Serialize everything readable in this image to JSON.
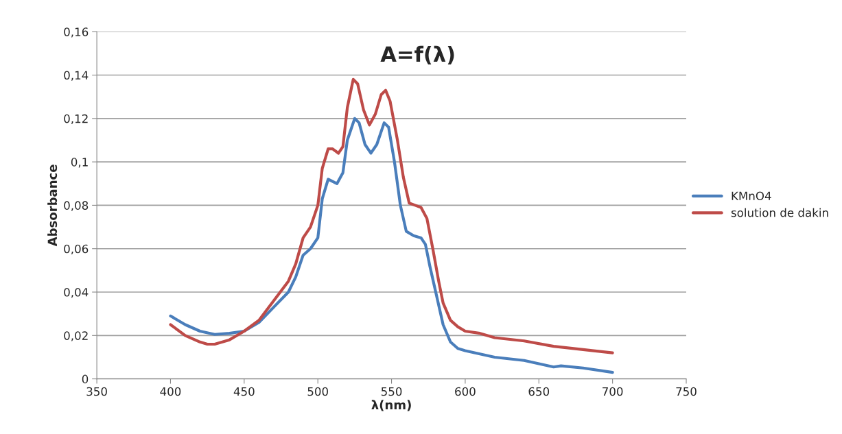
{
  "chart_data": {
    "type": "line",
    "title": "A=f(λ)",
    "xlabel": "λ(nm)",
    "ylabel": "Absorbance",
    "xlim": [
      350,
      750
    ],
    "xticks": [
      350,
      400,
      450,
      500,
      550,
      600,
      650,
      700,
      750
    ],
    "ylim": [
      0,
      0.16
    ],
    "yticks": [
      {
        "value": 0,
        "label": "0"
      },
      {
        "value": 0.02,
        "label": "0,02"
      },
      {
        "value": 0.04,
        "label": "0,04"
      },
      {
        "value": 0.06,
        "label": "0,06"
      },
      {
        "value": 0.08,
        "label": "0,08"
      },
      {
        "value": 0.1,
        "label": "0,1"
      },
      {
        "value": 0.12,
        "label": "0,12"
      },
      {
        "value": 0.14,
        "label": "0,14"
      },
      {
        "value": 0.16,
        "label": "0,16"
      }
    ],
    "grid": "y",
    "legend": "right",
    "marker": "none",
    "line_style": "solid",
    "series": [
      {
        "name": "KMnO4",
        "color": "#4a7ebb",
        "x": [
          400,
          410,
          420,
          430,
          440,
          450,
          460,
          470,
          480,
          485,
          490,
          495,
          500,
          503,
          507,
          510,
          513,
          517,
          520,
          525,
          528,
          532,
          536,
          540,
          545,
          548,
          552,
          556,
          560,
          565,
          570,
          573,
          576,
          580,
          585,
          590,
          595,
          600,
          620,
          640,
          650,
          660,
          665,
          680,
          700
        ],
        "values": [
          0.029,
          0.025,
          0.022,
          0.0205,
          0.021,
          0.022,
          0.026,
          0.033,
          0.04,
          0.047,
          0.057,
          0.06,
          0.065,
          0.083,
          0.092,
          0.091,
          0.09,
          0.095,
          0.11,
          0.12,
          0.118,
          0.108,
          0.104,
          0.108,
          0.118,
          0.116,
          0.1,
          0.08,
          0.068,
          0.066,
          0.065,
          0.062,
          0.052,
          0.04,
          0.025,
          0.017,
          0.014,
          0.013,
          0.01,
          0.0085,
          0.007,
          0.0055,
          0.006,
          0.005,
          0.003
        ]
      },
      {
        "name": "solution de dakin",
        "color": "#be4b48",
        "x": [
          400,
          410,
          420,
          425,
          430,
          440,
          450,
          460,
          470,
          480,
          485,
          490,
          495,
          500,
          503,
          507,
          510,
          514,
          517,
          520,
          524,
          527,
          531,
          535,
          539,
          543,
          546,
          549,
          554,
          558,
          562,
          566,
          570,
          574,
          578,
          582,
          585,
          590,
          595,
          600,
          610,
          620,
          640,
          660,
          680,
          700
        ],
        "values": [
          0.025,
          0.02,
          0.017,
          0.016,
          0.016,
          0.018,
          0.022,
          0.027,
          0.036,
          0.045,
          0.053,
          0.065,
          0.07,
          0.08,
          0.097,
          0.106,
          0.106,
          0.104,
          0.107,
          0.125,
          0.138,
          0.136,
          0.124,
          0.117,
          0.122,
          0.131,
          0.133,
          0.128,
          0.11,
          0.093,
          0.081,
          0.08,
          0.079,
          0.074,
          0.06,
          0.045,
          0.035,
          0.027,
          0.024,
          0.022,
          0.021,
          0.019,
          0.0175,
          0.015,
          0.0135,
          0.012
        ]
      }
    ]
  }
}
